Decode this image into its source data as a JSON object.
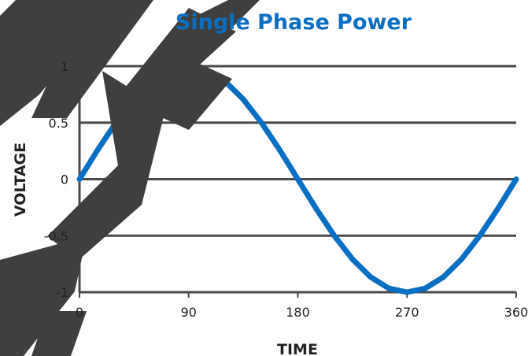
{
  "chart_data": {
    "type": "line",
    "title": "Single Phase Power",
    "xlabel": "TIME",
    "ylabel": "VOLTAGE",
    "xlim": [
      0,
      360
    ],
    "ylim": [
      -1,
      1
    ],
    "x_ticks": [
      "0",
      "90",
      "180",
      "270",
      "360"
    ],
    "x_tick_values": [
      0,
      90,
      180,
      270,
      360
    ],
    "y_ticks": [
      "1",
      "0.5",
      "0",
      "-0.5",
      "-1"
    ],
    "y_tick_values": [
      1,
      0.5,
      0,
      -0.5,
      -1
    ],
    "grid": "horizontal",
    "legend": "none",
    "series": [
      {
        "x": [
          0,
          15,
          30,
          45,
          60,
          75,
          90,
          105,
          120,
          135,
          150,
          165,
          180,
          195,
          210,
          225,
          240,
          255,
          270,
          285,
          300,
          315,
          330,
          345,
          360
        ],
        "y": [
          0,
          0.259,
          0.5,
          0.707,
          0.866,
          0.966,
          1,
          0.966,
          0.866,
          0.707,
          0.5,
          0.259,
          0,
          -0.259,
          -0.5,
          -0.707,
          -0.866,
          -0.966,
          -1,
          -0.966,
          -0.866,
          -0.707,
          -0.5,
          -0.259,
          0
        ]
      }
    ],
    "colors": {
      "series": "#0a6fc2",
      "title": "#0a6fc2",
      "grid": "#4a4a4a",
      "text": "#222222",
      "watermark": "#3f3f3f"
    }
  }
}
